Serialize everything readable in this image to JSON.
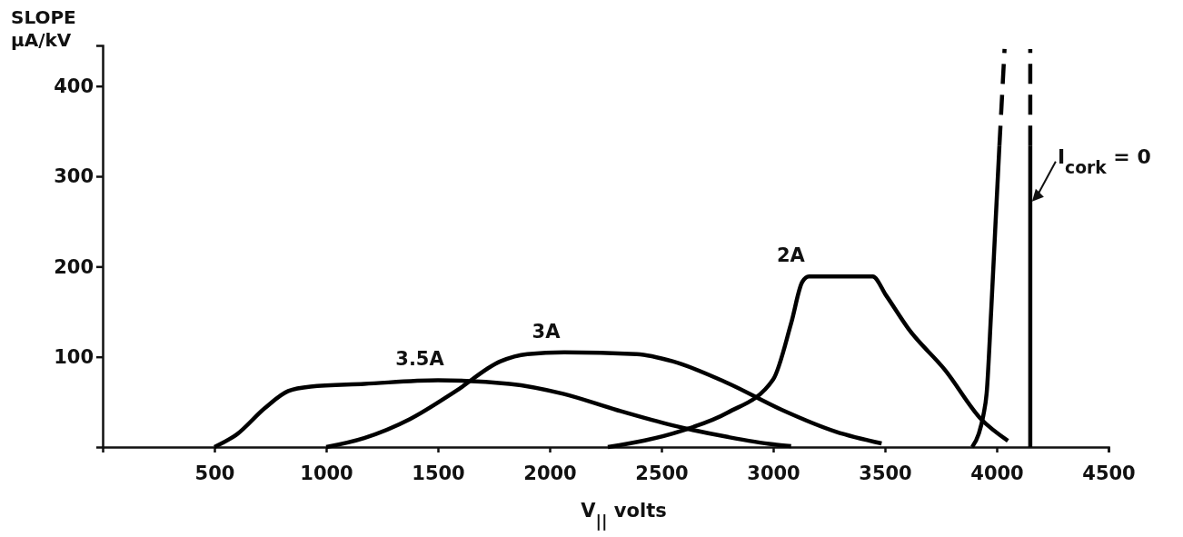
{
  "chart_data": {
    "type": "line",
    "xlabel": "V$_{||}$ volts",
    "ylabel": "SLOPE μA/kV",
    "xlim": [
      0,
      4500
    ],
    "ylim": [
      0,
      445
    ],
    "xticks": [
      500,
      1000,
      1500,
      2000,
      2500,
      3000,
      3500,
      4000,
      4500
    ],
    "yticks": [
      100,
      200,
      300,
      400
    ],
    "legend": false,
    "grid": false,
    "marker": "none",
    "series": [
      {
        "name": "3.5A",
        "color": "#000000",
        "line_style": "solid",
        "x": [
          500,
          600,
          725,
          830,
          930,
          1170,
          1500,
          1820,
          2060,
          2300,
          2550,
          2800,
          3000,
          3080
        ],
        "values": [
          0,
          14,
          43,
          62,
          67,
          70,
          74,
          70,
          59,
          41,
          24,
          11,
          3,
          1
        ]
      },
      {
        "name": "3A",
        "color": "#000000",
        "line_style": "solid",
        "x": [
          1000,
          1170,
          1375,
          1580,
          1780,
          1900,
          2065,
          2390,
          2550,
          2795,
          3040,
          3280,
          3485
        ],
        "values": [
          0,
          10,
          31,
          62,
          95,
          103,
          105,
          103,
          95,
          71,
          41,
          17,
          4
        ]
      },
      {
        "name": "2A",
        "color": "#000000",
        "line_style": "solid",
        "x": [
          2260,
          2590,
          2795,
          3000,
          3080,
          3130,
          3160,
          3445,
          3505,
          3605,
          3770,
          3930,
          4050
        ],
        "values": [
          0,
          18,
          38,
          75,
          137,
          183,
          189,
          189,
          168,
          131,
          85,
          31,
          7
        ]
      },
      {
        "color": "#000000",
        "line_style": "solid",
        "x": [
          3890,
          3920,
          3940,
          3955,
          3975,
          3995,
          4012
        ],
        "values": [
          0,
          15,
          35,
          60,
          150,
          250,
          334
        ]
      },
      {
        "color": "#000000",
        "line_style": "dashed",
        "x": [
          4012,
          4035
        ],
        "values": [
          334,
          441
        ]
      },
      {
        "color": "#000000",
        "line_style": "solid",
        "x": [
          4150,
          4150
        ],
        "values": [
          0,
          334
        ]
      },
      {
        "color": "#000000",
        "line_style": "dashed",
        "x": [
          4150,
          4150
        ],
        "values": [
          334,
          441
        ]
      }
    ],
    "annotations": [
      {
        "text": "I$_{cork}$ = 0",
        "x": 4150,
        "y": 271
      }
    ]
  }
}
